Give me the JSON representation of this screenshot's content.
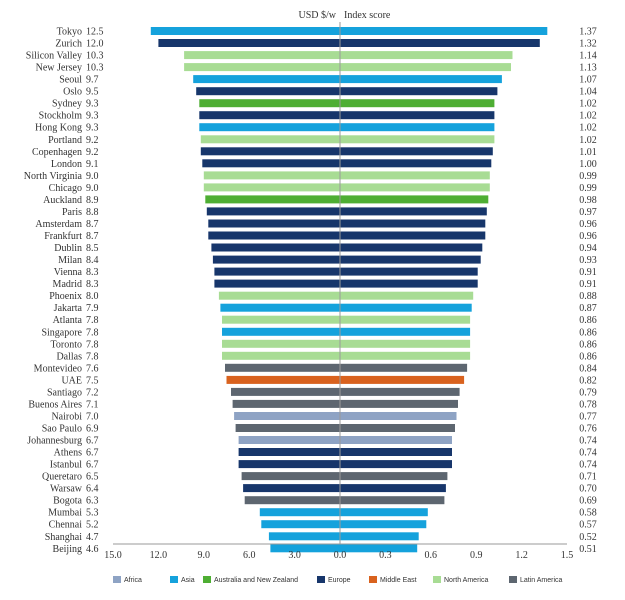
{
  "chart_data": {
    "type": "bar",
    "layout": "butterfly",
    "left_header": "USD $/w",
    "right_header": "Index score",
    "left_ticks": [
      "15.0",
      "12.0",
      "9.0",
      "6.0",
      "3.0",
      "0.0"
    ],
    "right_ticks": [
      "0.0",
      "0.3",
      "0.6",
      "0.9",
      "1.2",
      "1.5"
    ],
    "left_range": [
      0,
      15
    ],
    "right_range": [
      0,
      1.5
    ],
    "regions": [
      {
        "key": "africa",
        "name": "Africa",
        "color": "#8ea3c4"
      },
      {
        "key": "asia",
        "name": "Asia",
        "color": "#15a2dc"
      },
      {
        "key": "anz",
        "name": "Australia and New Zealand",
        "color": "#4eae33"
      },
      {
        "key": "europe",
        "name": "Europe",
        "color": "#17366b"
      },
      {
        "key": "me",
        "name": "Middle East",
        "color": "#d9621e"
      },
      {
        "key": "na",
        "name": "North America",
        "color": "#a8dc94"
      },
      {
        "key": "latam",
        "name": "Latin America",
        "color": "#5d6670"
      }
    ],
    "series": [
      {
        "city": "Tokyo",
        "usd": "12.5",
        "index": "1.37",
        "region": "asia"
      },
      {
        "city": "Zurich",
        "usd": "12.0",
        "index": "1.32",
        "region": "europe"
      },
      {
        "city": "Silicon Valley",
        "usd": "10.3",
        "index": "1.14",
        "region": "na"
      },
      {
        "city": "New Jersey",
        "usd": "10.3",
        "index": "1.13",
        "region": "na"
      },
      {
        "city": "Seoul",
        "usd": "9.7",
        "index": "1.07",
        "region": "asia"
      },
      {
        "city": "Oslo",
        "usd": "9.5",
        "index": "1.04",
        "region": "europe"
      },
      {
        "city": "Sydney",
        "usd": "9.3",
        "index": "1.02",
        "region": "anz"
      },
      {
        "city": "Stockholm",
        "usd": "9.3",
        "index": "1.02",
        "region": "europe"
      },
      {
        "city": "Hong Kong",
        "usd": "9.3",
        "index": "1.02",
        "region": "asia"
      },
      {
        "city": "Portland",
        "usd": "9.2",
        "index": "1.02",
        "region": "na"
      },
      {
        "city": "Copenhagen",
        "usd": "9.2",
        "index": "1.01",
        "region": "europe"
      },
      {
        "city": "London",
        "usd": "9.1",
        "index": "1.00",
        "region": "europe"
      },
      {
        "city": "North Virginia",
        "usd": "9.0",
        "index": "0.99",
        "region": "na"
      },
      {
        "city": "Chicago",
        "usd": "9.0",
        "index": "0.99",
        "region": "na"
      },
      {
        "city": "Auckland",
        "usd": "8.9",
        "index": "0.98",
        "region": "anz"
      },
      {
        "city": "Paris",
        "usd": "8.8",
        "index": "0.97",
        "region": "europe"
      },
      {
        "city": "Amsterdam",
        "usd": "8.7",
        "index": "0.96",
        "region": "europe"
      },
      {
        "city": "Frankfurt",
        "usd": "8.7",
        "index": "0.96",
        "region": "europe"
      },
      {
        "city": "Dublin",
        "usd": "8.5",
        "index": "0.94",
        "region": "europe"
      },
      {
        "city": "Milan",
        "usd": "8.4",
        "index": "0.93",
        "region": "europe"
      },
      {
        "city": "Vienna",
        "usd": "8.3",
        "index": "0.91",
        "region": "europe"
      },
      {
        "city": "Madrid",
        "usd": "8.3",
        "index": "0.91",
        "region": "europe"
      },
      {
        "city": "Phoenix",
        "usd": "8.0",
        "index": "0.88",
        "region": "na"
      },
      {
        "city": "Jakarta",
        "usd": "7.9",
        "index": "0.87",
        "region": "asia"
      },
      {
        "city": "Atlanta",
        "usd": "7.8",
        "index": "0.86",
        "region": "na"
      },
      {
        "city": "Singapore",
        "usd": "7.8",
        "index": "0.86",
        "region": "asia"
      },
      {
        "city": "Toronto",
        "usd": "7.8",
        "index": "0.86",
        "region": "na"
      },
      {
        "city": "Dallas",
        "usd": "7.8",
        "index": "0.86",
        "region": "na"
      },
      {
        "city": "Montevideo",
        "usd": "7.6",
        "index": "0.84",
        "region": "latam"
      },
      {
        "city": "UAE",
        "usd": "7.5",
        "index": "0.82",
        "region": "me"
      },
      {
        "city": "Santiago",
        "usd": "7.2",
        "index": "0.79",
        "region": "latam"
      },
      {
        "city": "Buenos Aires",
        "usd": "7.1",
        "index": "0.78",
        "region": "latam"
      },
      {
        "city": "Nairobi",
        "usd": "7.0",
        "index": "0.77",
        "region": "africa"
      },
      {
        "city": "Sao Paulo",
        "usd": "6.9",
        "index": "0.76",
        "region": "latam"
      },
      {
        "city": "Johannesburg",
        "usd": "6.7",
        "index": "0.74",
        "region": "africa"
      },
      {
        "city": "Athens",
        "usd": "6.7",
        "index": "0.74",
        "region": "europe"
      },
      {
        "city": "Istanbul",
        "usd": "6.7",
        "index": "0.74",
        "region": "europe"
      },
      {
        "city": "Queretaro",
        "usd": "6.5",
        "index": "0.71",
        "region": "latam"
      },
      {
        "city": "Warsaw",
        "usd": "6.4",
        "index": "0.70",
        "region": "europe"
      },
      {
        "city": "Bogota",
        "usd": "6.3",
        "index": "0.69",
        "region": "latam"
      },
      {
        "city": "Mumbai",
        "usd": "5.3",
        "index": "0.58",
        "region": "asia"
      },
      {
        "city": "Chennai",
        "usd": "5.2",
        "index": "0.57",
        "region": "asia"
      },
      {
        "city": "Shanghai",
        "usd": "4.7",
        "index": "0.52",
        "region": "asia"
      },
      {
        "city": "Beijing",
        "usd": "4.6",
        "index": "0.51",
        "region": "asia"
      }
    ]
  }
}
